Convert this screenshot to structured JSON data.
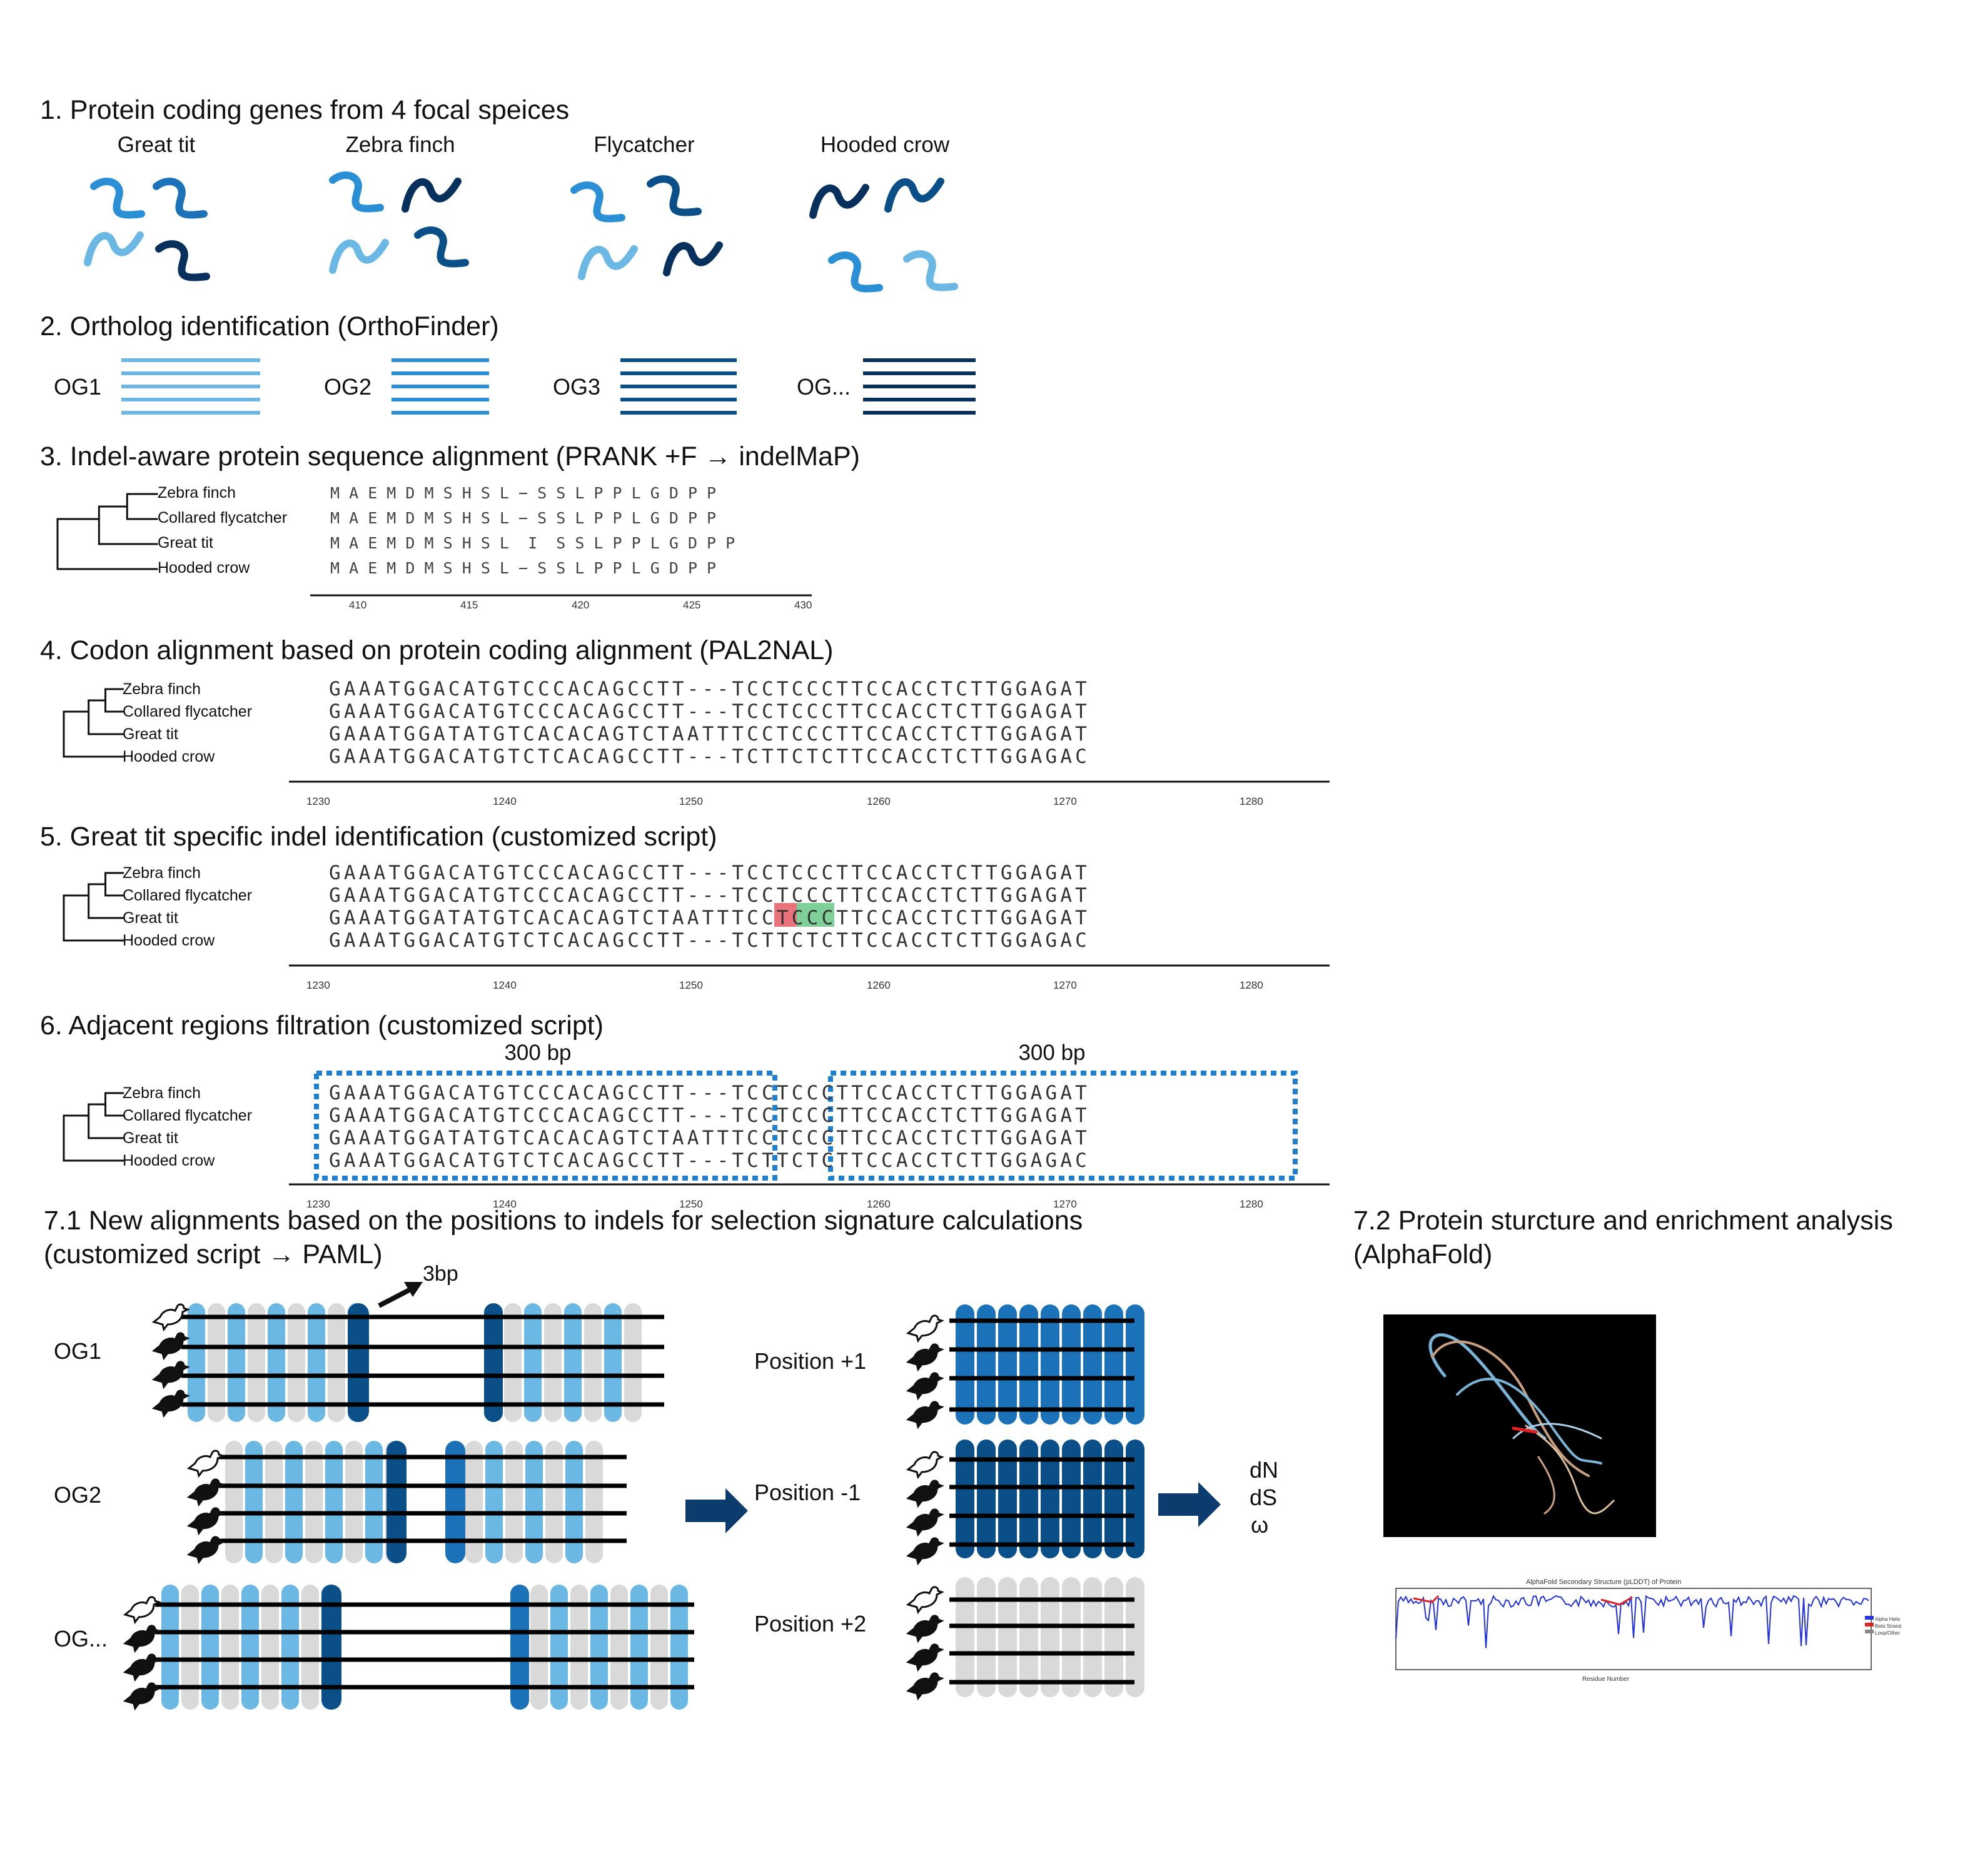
{
  "colors": {
    "light_blue": "#6cb8e4",
    "mid_blue": "#2b8fd6",
    "blue": "#1b72b8",
    "dark_blue": "#0a4f88",
    "navy": "#07305c",
    "grey": "#d9d9d9",
    "dotted_box": "#1f80d0",
    "indel_red": "#e8737a",
    "indel_green": "#7fcf98"
  },
  "step1": {
    "title": "1. Protein coding genes from 4 focal speices",
    "species": [
      "Great tit",
      "Zebra finch",
      "Flycatcher",
      "Hooded crow"
    ]
  },
  "step2": {
    "title": "2. Ortholog identification (OrthoFinder)",
    "groups": [
      "OG1",
      "OG2",
      "OG3",
      "OG..."
    ]
  },
  "step3": {
    "title": "3. Indel-aware protein sequence alignment (PRANK +F → indelMaP)",
    "taxa": [
      "Zebra finch",
      "Collared flycatcher",
      "Great tit",
      "Hooded crow"
    ],
    "rows": [
      "M A E M D M S H S L − S S L P P L G D P P",
      "M A E M D M S H S L − S S L P P L G D P P",
      "M A E M D M S H S L  I  S S L P P L G D P P",
      "M A E M D M S H S L − S S L P P L G D P P"
    ],
    "ticks": [
      "410",
      "415",
      "420",
      "425",
      "430"
    ]
  },
  "step4": {
    "title": "4. Codon alignment based on protein coding alignment (PAL2NAL)",
    "taxa": [
      "Zebra finch",
      "Collared flycatcher",
      "Great tit",
      "Hooded crow"
    ],
    "rows": [
      "GAAATGGACATGTCCCACAGCCTT---TCCTCCCTTCCACCTCTTGGAGAT",
      "GAAATGGACATGTCCCACAGCCTT---TCCTCCCTTCCACCTCTTGGAGAT",
      "GAAATGGATATGTCACACAGTCTAATTTCCTCCCTTCCACCTCTTGGAGAT",
      "GAAATGGACATGTCTCACAGCCTT---TCTTCTCTTCCACCTCTTGGAGAC"
    ],
    "ticks": [
      "1230",
      "1240",
      "1250",
      "1260",
      "1270",
      "1280"
    ]
  },
  "step5": {
    "title": "5. Great tit specific indel identification (customized script)",
    "taxa": [
      "Zebra finch",
      "Collared flycatcher",
      "Great tit",
      "Hooded crow"
    ],
    "rows": [
      "GAAATGGACATGTCCCACAGCCTT---TCCTCCCTTCCACCTCTTGGAGAT",
      "GAAATGGACATGTCCCACAGCCTT---TCCTCCCTTCCACCTCTTGGAGAT",
      "GAAATGGATATGTCACACAGTCTAATTTCCTCCCTTCCACCTCTTGGAGAT",
      "GAAATGGACATGTCTCACAGCCTT---TCTTCTCTTCCACCTCTTGGAGAC"
    ],
    "ticks": [
      "1230",
      "1240",
      "1250",
      "1260",
      "1270",
      "1280"
    ]
  },
  "step6": {
    "title": "6. Adjacent regions filtration (customized script)",
    "left_label": "300 bp",
    "right_label": "300 bp",
    "taxa": [
      "Zebra finch",
      "Collared flycatcher",
      "Great tit",
      "Hooded crow"
    ],
    "rows": [
      "GAAATGGACATGTCCCACAGCCTT---TCCTCCCTTCCACCTCTTGGAGAT",
      "GAAATGGACATGTCCCACAGCCTT---TCCTCCCTTCCACCTCTTGGAGAT",
      "GAAATGGATATGTCACACAGTCTAATTTCCTCCCTTCCACCTCTTGGAGAT",
      "GAAATGGACATGTCTCACAGCCTT---TCTTCTCTTCCACCTCTTGGAGAC"
    ],
    "ticks": [
      "1230",
      "1240",
      "1250",
      "1260",
      "1270",
      "1280"
    ]
  },
  "step71": {
    "title_line1": "7.1 New alignments based on the positions to indels for selection signature calculations",
    "title_line2": "(customized script → PAML)",
    "shift_label": "3bp",
    "groups": [
      "OG1",
      "OG2",
      "OG..."
    ],
    "positions": [
      "Position +1",
      "Position -1",
      "Position +2"
    ],
    "outputs": [
      "dN",
      "dS",
      "ω"
    ]
  },
  "step72": {
    "title_line1": "7.2 Protein sturcture and enrichment analysis",
    "title_line2": "(AlphaFold)",
    "plot_title": "AlphaFold Secondary Structure (pLDDT) of Protein",
    "plot_xlabel": "Residue Number",
    "legend": [
      "Alpha Helix",
      "Beta Strand",
      "Loop/Other"
    ]
  }
}
